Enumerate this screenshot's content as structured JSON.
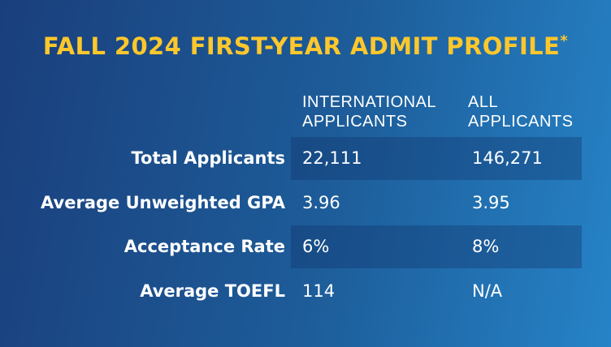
{
  "title": "FALL 2024 FIRST-YEAR ADMIT PROFILE",
  "title_mark": "*",
  "columns": {
    "international": [
      "INTERNATIONAL",
      "APPLICANTS"
    ],
    "all": [
      "ALL",
      "APPLICANTS"
    ]
  },
  "rows": [
    {
      "label": "Total Applicants",
      "international": "22,111",
      "all": "146,271"
    },
    {
      "label": "Average Unweighted GPA",
      "international": "3.96",
      "all": "3.95"
    },
    {
      "label": "Acceptance Rate",
      "international": "6%",
      "all": "8%"
    },
    {
      "label": "Average TOEFL",
      "international": "114",
      "all": "N/A"
    }
  ],
  "colors": {
    "title": "#ffc72c",
    "text": "#ffffff",
    "background_start": "#1a3f7c",
    "background_end": "#2683c7"
  }
}
